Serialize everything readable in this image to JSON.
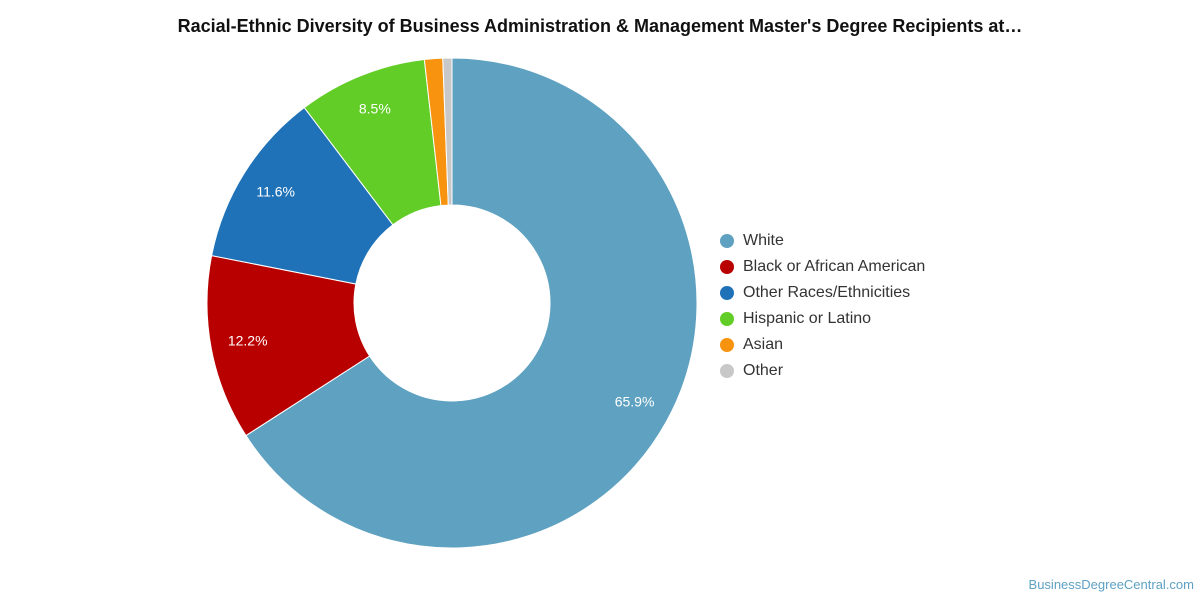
{
  "title": "Racial-Ethnic Diversity of Business Administration & Management Master's Degree Recipients at…",
  "credit": "BusinessDegreeCentral.com",
  "chart_data": {
    "type": "pie",
    "variant": "donut",
    "title": "Racial-Ethnic Diversity of Business Administration & Management Master's Degree Recipients at…",
    "legend_position": "right",
    "slices": [
      {
        "name": "White",
        "value": 65.9,
        "label": "65.9%",
        "color": "#5ea1c0"
      },
      {
        "name": "Black or African American",
        "value": 12.2,
        "label": "12.2%",
        "color": "#b90000"
      },
      {
        "name": "Other Races/Ethnicities",
        "value": 11.6,
        "label": "11.6%",
        "color": "#1f72b8"
      },
      {
        "name": "Hispanic or Latino",
        "value": 8.5,
        "label": "8.5%",
        "color": "#62cd26"
      },
      {
        "name": "Asian",
        "value": 1.2,
        "label": "",
        "color": "#f7930f"
      },
      {
        "name": "Other",
        "value": 0.6,
        "label": "",
        "color": "#c8c8c8"
      }
    ]
  }
}
